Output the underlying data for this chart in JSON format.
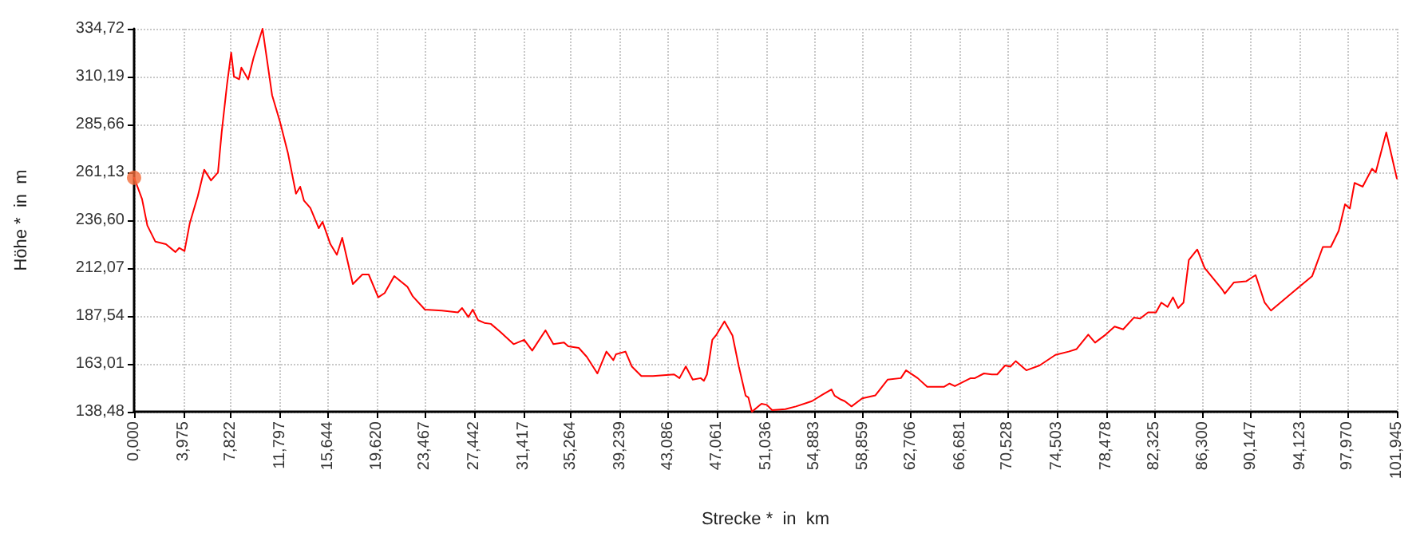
{
  "chart_data": {
    "type": "line",
    "xlabel": "Strecke *  in  km",
    "ylabel": "Höhe *  in  m",
    "xlim": [
      0,
      101.945
    ],
    "xticks": [
      {
        "value": 0,
        "label": "0,000"
      },
      {
        "value": 3.975,
        "label": "3,975"
      },
      {
        "value": 7.822,
        "label": "7,822"
      },
      {
        "value": 11.797,
        "label": "11,797"
      },
      {
        "value": 15.644,
        "label": "15,644"
      },
      {
        "value": 19.62,
        "label": "19,620"
      },
      {
        "value": 23.467,
        "label": "23,467"
      },
      {
        "value": 27.442,
        "label": "27,442"
      },
      {
        "value": 31.417,
        "label": "31,417"
      },
      {
        "value": 35.264,
        "label": "35,264"
      },
      {
        "value": 39.239,
        "label": "39,239"
      },
      {
        "value": 43.086,
        "label": "43,086"
      },
      {
        "value": 47.061,
        "label": "47,061"
      },
      {
        "value": 51.036,
        "label": "51,036"
      },
      {
        "value": 54.883,
        "label": "54,883"
      },
      {
        "value": 58.859,
        "label": "58,859"
      },
      {
        "value": 62.706,
        "label": "62,706"
      },
      {
        "value": 66.681,
        "label": "66,681"
      },
      {
        "value": 70.528,
        "label": "70,528"
      },
      {
        "value": 74.503,
        "label": "74,503"
      },
      {
        "value": 78.478,
        "label": "78,478"
      },
      {
        "value": 82.325,
        "label": "82,325"
      },
      {
        "value": 86.3,
        "label": "86,300"
      },
      {
        "value": 90.147,
        "label": "90,147"
      },
      {
        "value": 94.123,
        "label": "94,123"
      },
      {
        "value": 97.97,
        "label": "97,970"
      },
      {
        "value": 101.945,
        "label": "101,945"
      }
    ],
    "ylim": [
      138.48,
      334.72
    ],
    "yticks": [
      {
        "value": 138.48,
        "label": "138,48"
      },
      {
        "value": 163.01,
        "label": "163,01"
      },
      {
        "value": 187.54,
        "label": "187,54"
      },
      {
        "value": 212.07,
        "label": "212,07"
      },
      {
        "value": 236.6,
        "label": "236,60"
      },
      {
        "value": 261.13,
        "label": "261,13"
      },
      {
        "value": 285.66,
        "label": "285,66"
      },
      {
        "value": 310.19,
        "label": "310,19"
      },
      {
        "value": 334.72,
        "label": "334,72"
      }
    ],
    "grid": true,
    "marker": "none",
    "line_style": "solid",
    "series": [
      {
        "color": "#ff0000",
        "x": [
          0,
          0.64,
          1.07,
          1.71,
          2.57,
          3.34,
          3.64,
          4.07,
          4.5,
          5.14,
          5.66,
          6.21,
          6.77,
          7.07,
          7.5,
          7.84,
          8.06,
          8.48,
          8.66,
          9.21,
          9.64,
          10.37,
          11.14,
          11.78,
          12.43,
          13.07,
          13.41,
          13.71,
          14.23,
          14.91,
          15.21,
          15.85,
          16.37,
          16.8,
          17.66,
          18.43,
          18.94,
          19.71,
          20.23,
          21.0,
          22.07,
          22.5,
          23.48,
          24.85,
          26.14,
          26.48,
          26.99,
          27.34,
          27.77,
          28.28,
          28.8,
          29.57,
          30.64,
          31.49,
          32.14,
          33.21,
          33.85,
          34.71,
          35.05,
          35.9,
          36.55,
          37.4,
          38.13,
          38.69,
          38.9,
          39.67,
          40.18,
          40.95,
          41.89,
          43.6,
          44.03,
          44.54,
          45.1,
          45.74,
          46.0,
          46.25,
          46.68,
          47.02,
          47.66,
          48.31,
          48.82,
          49.37,
          49.59,
          49.88,
          50.65,
          51.08,
          51.51,
          52.58,
          53.43,
          54.72,
          55.57,
          56.3,
          56.55,
          57.07,
          57.37,
          57.92,
          58.78,
          59.85,
          60.83,
          61.9,
          62.32,
          63.26,
          64.03,
          65.4,
          65.83,
          66.26,
          67.54,
          67.88,
          68.61,
          69.25,
          69.68,
          70.32,
          70.74,
          71.17,
          72.03,
          73.1,
          74.38,
          75.45,
          76.09,
          77.03,
          77.58,
          78.44,
          79.16,
          79.85,
          80.71,
          81.22,
          81.86,
          82.5,
          82.93,
          83.44,
          83.87,
          84.29,
          84.72,
          85.15,
          85.83,
          86.43,
          87.84,
          88.06,
          88.78,
          89.77,
          90.54,
          91.27,
          91.78,
          93.83,
          95.11,
          95.97,
          96.61,
          97.25,
          97.76,
          98.15,
          98.53,
          99.18,
          99.94,
          100.24,
          101.09,
          101.945
        ],
        "values": [
          258.4,
          247.5,
          233.9,
          225.7,
          224.3,
          220.3,
          222.4,
          220.8,
          235.2,
          248.9,
          262.5,
          257.0,
          261.1,
          281.6,
          306.1,
          322.5,
          310.2,
          308.8,
          314.8,
          308.8,
          319.7,
          334.7,
          300.7,
          287.0,
          270.7,
          250.2,
          253.8,
          246.7,
          242.9,
          232.5,
          235.8,
          224.3,
          218.9,
          227.6,
          203.9,
          208.8,
          208.8,
          197.1,
          199.3,
          208.0,
          202.5,
          197.6,
          190.8,
          190.3,
          189.4,
          191.6,
          187.0,
          190.8,
          185.4,
          184.0,
          183.5,
          179.4,
          173.1,
          175.3,
          169.8,
          180.2,
          173.1,
          173.9,
          172.0,
          171.2,
          166.6,
          158.1,
          169.3,
          164.9,
          167.9,
          169.3,
          161.7,
          156.8,
          156.8,
          157.6,
          155.7,
          161.7,
          154.9,
          155.7,
          154.3,
          157.6,
          175.3,
          178.0,
          184.8,
          177.5,
          161.7,
          146.7,
          145.8,
          138.5,
          142.6,
          142.0,
          139.3,
          139.8,
          141.2,
          143.9,
          147.2,
          149.9,
          146.7,
          144.7,
          143.9,
          141.2,
          145.3,
          146.9,
          154.9,
          155.7,
          159.7,
          155.7,
          151.3,
          151.3,
          152.9,
          151.6,
          155.7,
          155.7,
          158.1,
          157.6,
          157.6,
          162.2,
          161.6,
          164.4,
          159.7,
          162.2,
          167.6,
          169.3,
          170.6,
          178.0,
          173.9,
          178.0,
          182.1,
          180.7,
          186.7,
          186.2,
          189.4,
          189.4,
          194.4,
          192.2,
          197.1,
          191.6,
          194.4,
          216.2,
          221.6,
          212.1,
          201.2,
          199.0,
          204.7,
          205.3,
          208.5,
          194.4,
          190.3,
          201.2,
          208.0,
          222.9,
          222.9,
          231.2,
          244.8,
          242.6,
          255.7,
          253.8,
          263.0,
          261.1,
          281.6,
          258.0
        ]
      },
      {
        "type": "scatter",
        "color": "#f26b3a",
        "marker": "circle",
        "x": [
          0
        ],
        "values": [
          258.4
        ]
      }
    ]
  }
}
